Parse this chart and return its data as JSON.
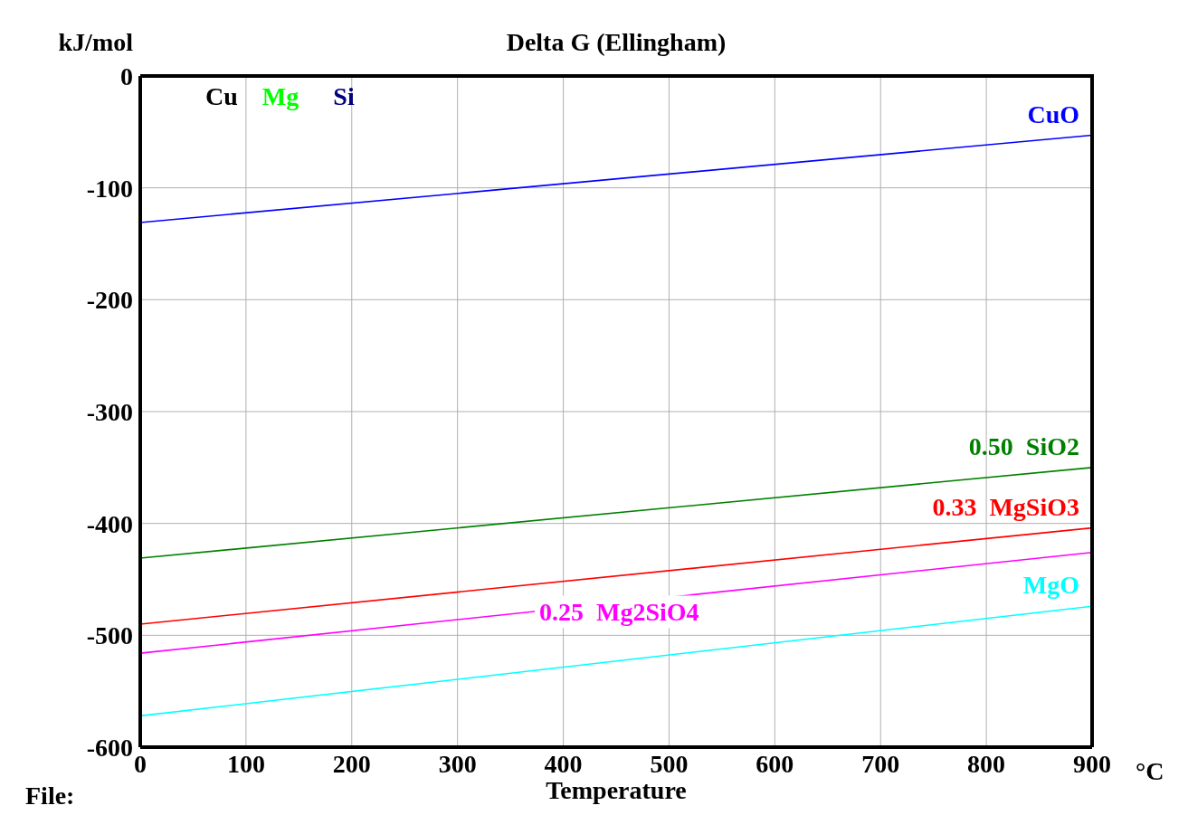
{
  "chart_data": {
    "type": "line",
    "title": "Delta G (Ellingham)",
    "xlabel": "Temperature",
    "ylabel": "kJ/mol",
    "annotations": [
      "Cu",
      "Mg",
      "Si",
      "°C",
      "File:"
    ],
    "x": [
      0,
      900
    ],
    "xlim": [
      0,
      900
    ],
    "xticks": [
      0,
      100,
      200,
      300,
      400,
      500,
      600,
      700,
      800,
      900
    ],
    "ylim": [
      -600,
      0
    ],
    "yticks": [
      -600,
      -500,
      -400,
      -300,
      -200,
      -100,
      0
    ],
    "grid": true,
    "legend": false,
    "marker": "none",
    "line_style": "solid",
    "series": [
      {
        "name": "CuO",
        "color": "#0000ff",
        "values": [
          -131,
          -53
        ]
      },
      {
        "name": "0.50  SiO2",
        "color": "#008000",
        "values": [
          -431,
          -350
        ]
      },
      {
        "name": "0.33  MgSiO3",
        "color": "#ff0000",
        "values": [
          -490,
          -404
        ]
      },
      {
        "name": "0.25  Mg2SiO4",
        "color": "#ff00ff",
        "values": [
          -516,
          -426
        ]
      },
      {
        "name": "MgO",
        "color": "#00ffff",
        "values": [
          -572,
          -474
        ]
      }
    ]
  }
}
